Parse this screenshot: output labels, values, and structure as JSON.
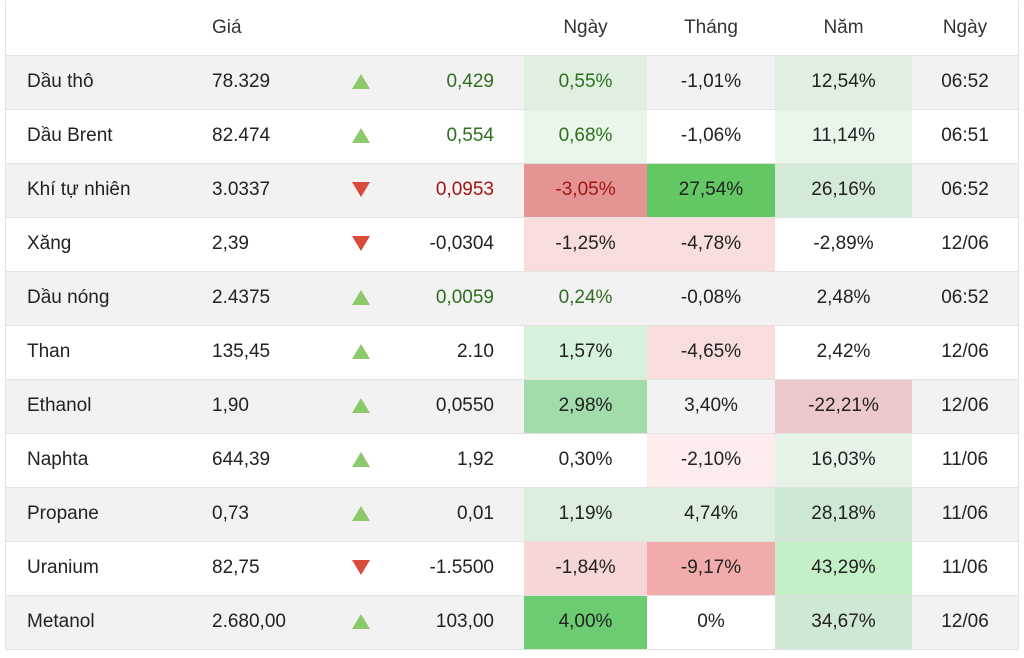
{
  "headers": {
    "name": "",
    "price": "Giá",
    "direction": "",
    "change": "",
    "day": "Ngày",
    "month": "Tháng",
    "year": "Năm",
    "time": "Ngày"
  },
  "colors": {
    "positive_text": "#2e6f1f",
    "negative_text": "#a31515",
    "arrow_up": "#8cc96b",
    "arrow_down": "#d94a3d"
  },
  "rows": [
    {
      "name": "Dầu thô",
      "price": "78.329",
      "direction": "up",
      "change": "0,429",
      "change_color": "pos",
      "day": "0,55%",
      "month": "-1,01%",
      "year": "12,54%",
      "time": "06:52",
      "day_bg": "#dff0e0",
      "month_bg": "",
      "year_bg": "#dff0e0"
    },
    {
      "name": "Dầu Brent",
      "price": "82.474",
      "direction": "up",
      "change": "0,554",
      "change_color": "pos",
      "day": "0,68%",
      "month": "-1,06%",
      "year": "11,14%",
      "time": "06:51",
      "day_bg": "#e9f6ea",
      "month_bg": "",
      "year_bg": "#e9f6ea"
    },
    {
      "name": "Khí tự nhiên",
      "price": "3.0337",
      "direction": "down",
      "change": "0,0953",
      "change_color": "neg",
      "day": "-3,05%",
      "month": "27,54%",
      "year": "26,16%",
      "time": "06:52",
      "day_bg": "#e59494",
      "month_bg": "#63c763",
      "year_bg": "#d3ead6"
    },
    {
      "name": "Xăng",
      "price": "2,39",
      "direction": "down",
      "change": "-0,0304",
      "change_color": "",
      "day": "-1,25%",
      "month": "-4,78%",
      "year": "-2,89%",
      "time": "12/06",
      "day_bg": "#f9dcdc",
      "month_bg": "#f9dcdc",
      "year_bg": ""
    },
    {
      "name": "Dầu nóng",
      "price": "2.4375",
      "direction": "up",
      "change": "0,0059",
      "change_color": "pos",
      "day": "0,24%",
      "month": "-0,08%",
      "year": "2,48%",
      "time": "06:52",
      "day_bg": "",
      "month_bg": "",
      "year_bg": ""
    },
    {
      "name": "Than",
      "price": "135,45",
      "direction": "up",
      "change": "2.10",
      "change_color": "",
      "day": "1,57%",
      "month": "-4,65%",
      "year": "2,42%",
      "time": "12/06",
      "day_bg": "#d6f2da",
      "month_bg": "#f9dcdc",
      "year_bg": ""
    },
    {
      "name": "Ethanol",
      "price": "1,90",
      "direction": "up",
      "change": "0,0550",
      "change_color": "",
      "day": "2,98%",
      "month": "3,40%",
      "year": "-22,21%",
      "time": "12/06",
      "day_bg": "#a2dcaa",
      "month_bg": "",
      "year_bg": "#ecc8cb"
    },
    {
      "name": "Naphta",
      "price": "644,39",
      "direction": "up",
      "change": "1,92",
      "change_color": "",
      "day": "0,30%",
      "month": "-2,10%",
      "year": "16,03%",
      "time": "11/06",
      "day_bg": "",
      "month_bg": "#fcecec",
      "year_bg": "#e5f4e7"
    },
    {
      "name": "Propane",
      "price": "0,73",
      "direction": "up",
      "change": "0,01",
      "change_color": "",
      "day": "1,19%",
      "month": "4,74%",
      "year": "28,18%",
      "time": "11/06",
      "day_bg": "#dcefdf",
      "month_bg": "#dcefdf",
      "year_bg": "#cfe8d3"
    },
    {
      "name": "Uranium",
      "price": "82,75",
      "direction": "down",
      "change": "-1.5500",
      "change_color": "",
      "day": "-1,84%",
      "month": "-9,17%",
      "year": "43,29%",
      "time": "11/06",
      "day_bg": "#f7d6d6",
      "month_bg": "#f1abab",
      "year_bg": "#c4f0c8"
    },
    {
      "name": "Metanol",
      "price": "2.680,00",
      "direction": "up",
      "change": "103,00",
      "change_color": "",
      "day": "4,00%",
      "month": "0%",
      "year": "34,67%",
      "time": "12/06",
      "day_bg": "#6dcc72",
      "month_bg": "#ffffff",
      "year_bg": "#cfe8d3"
    }
  ]
}
